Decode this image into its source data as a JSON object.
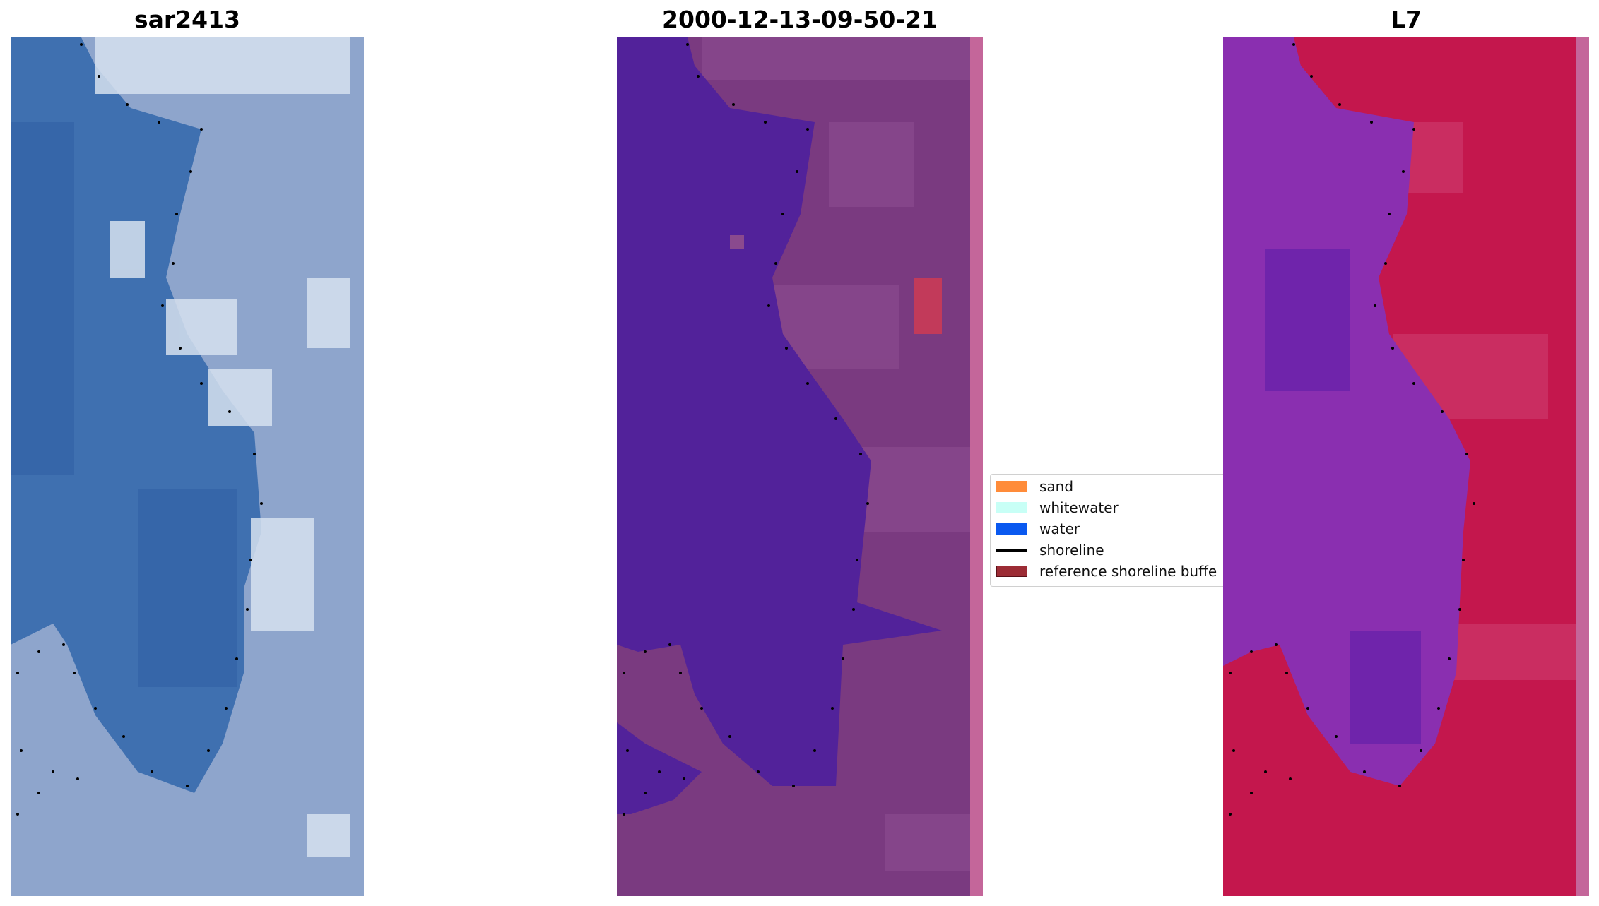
{
  "panels": [
    {
      "title": "sar2413",
      "image": "rgb-satellite-image"
    },
    {
      "title": "2000-12-13-09-50-21",
      "image": "classified-image"
    },
    {
      "title": "L7",
      "image": "mndwi-image"
    }
  ],
  "legend": {
    "items": [
      {
        "label": "sand",
        "color": "#ff8c3a",
        "kind": "patch"
      },
      {
        "label": "whitewater",
        "color": "#c8fff6",
        "kind": "patch"
      },
      {
        "label": "water",
        "color": "#0a59f0",
        "kind": "patch"
      },
      {
        "label": "shoreline",
        "color": "#000000",
        "kind": "line"
      },
      {
        "label": "reference shoreline buffe",
        "color": "#9c2c35",
        "kind": "patch"
      }
    ]
  },
  "colors": {
    "water_rgb": "#3f70b0",
    "land_rgb": "#8ea5cc",
    "water_class": "#52229a",
    "land_class": "#7a3a80",
    "water_index": "#8a2fb0",
    "land_index": "#c4174d",
    "buffer_strip": "#c4669a",
    "shoreline_dots": "#000000"
  }
}
